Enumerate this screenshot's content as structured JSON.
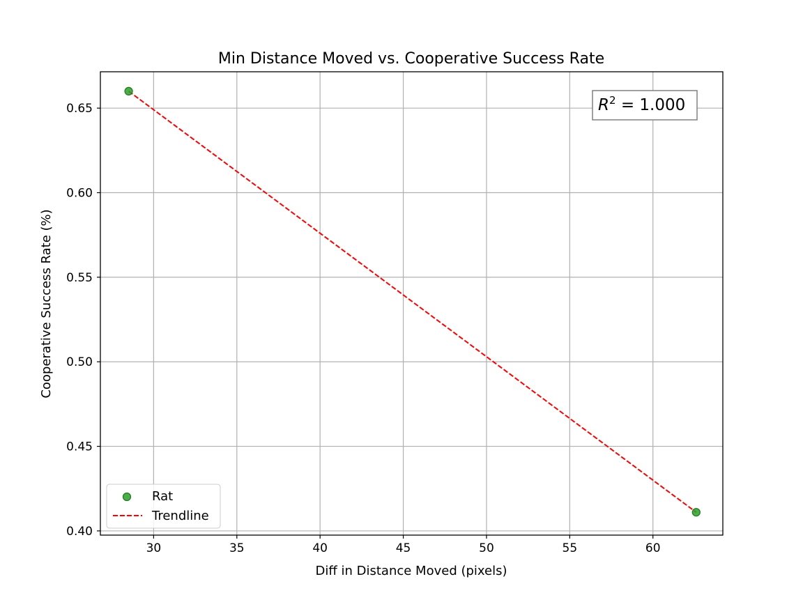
{
  "chart_data": {
    "type": "scatter",
    "title": "Min Distance Moved vs. Cooperative Success Rate",
    "xlabel": "Diff in Distance Moved (pixels)",
    "ylabel": "Cooperative Success Rate (%)",
    "xlim": [
      26.8,
      64.2
    ],
    "ylim": [
      0.3975,
      0.6715
    ],
    "xticks": [
      30,
      35,
      40,
      45,
      50,
      55,
      60
    ],
    "yticks": [
      0.4,
      0.45,
      0.5,
      0.55,
      0.6,
      0.65
    ],
    "xtick_labels": [
      "30",
      "35",
      "40",
      "45",
      "50",
      "55",
      "60"
    ],
    "ytick_labels": [
      "0.40",
      "0.45",
      "0.50",
      "0.55",
      "0.60",
      "0.65"
    ],
    "grid": true,
    "legend_position": "lower-left",
    "series": [
      {
        "name": "Rat",
        "kind": "scatter",
        "color": "#2ca02c",
        "points": [
          {
            "x": 28.5,
            "y": 0.66
          },
          {
            "x": 62.6,
            "y": 0.411
          }
        ]
      },
      {
        "name": "Trendline",
        "kind": "line",
        "style": "dashed",
        "color": "#ff0000",
        "points": [
          {
            "x": 28.5,
            "y": 0.66
          },
          {
            "x": 62.6,
            "y": 0.411
          }
        ]
      }
    ],
    "annotation": {
      "label": "R",
      "superscript": "2",
      "text": " = 1.000",
      "position": "top-right"
    }
  }
}
